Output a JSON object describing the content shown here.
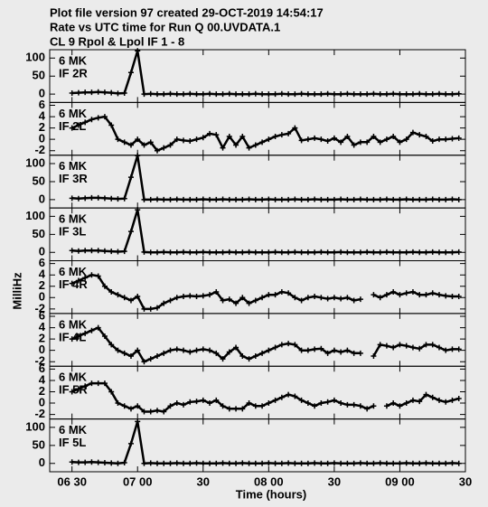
{
  "title_lines": [
    "Plot file version 97  created 29-OCT-2019 14:54:17",
    "Rate vs UTC time for Run Q 00.UVDATA.1",
    "CL 9  Rpol & Lpol  IF 1 - 8"
  ],
  "ylabel": "MilliHz",
  "time_axis": {
    "label": "Time (hours)",
    "xlim": [
      6.33,
      9.5
    ],
    "xticks": [
      {
        "value": 6.5,
        "label": "06 30"
      },
      {
        "value": 7,
        "label": "07 00"
      },
      {
        "value": 7.5,
        "label": "30"
      },
      {
        "value": 8,
        "label": "08 00"
      },
      {
        "value": 8.5,
        "label": "30"
      },
      {
        "value": 9,
        "label": "09 00"
      },
      {
        "value": 9.5,
        "label": "30"
      }
    ]
  },
  "chart_data": [
    {
      "type": "scatter",
      "source": "6 MK",
      "label": "IF 2R",
      "color": "#000000",
      "ylim": [
        -23,
        123
      ],
      "yticks": [
        0,
        50,
        100
      ],
      "x": [
        6.5,
        6.55,
        6.6,
        6.65,
        6.7,
        6.75,
        6.8,
        6.85,
        6.9,
        6.95,
        7,
        7.05,
        7.1,
        7.15,
        7.2,
        7.25,
        7.3,
        7.35,
        7.4,
        7.45,
        7.5,
        7.55,
        7.6,
        7.65,
        7.7,
        7.75,
        7.8,
        7.85,
        7.9,
        7.95,
        8,
        8.05,
        8.1,
        8.15,
        8.2,
        8.25,
        8.3,
        8.35,
        8.4,
        8.45,
        8.5,
        8.55,
        8.6,
        8.65,
        8.7,
        8.75,
        8.8,
        8.85,
        8.9,
        8.95,
        9,
        9.05,
        9.1,
        9.15,
        9.2,
        9.25,
        9.3,
        9.35,
        9.4,
        9.45
      ],
      "values": [
        3,
        4,
        5,
        5,
        6,
        5,
        4,
        2,
        3,
        60,
        120,
        0,
        1,
        0,
        0,
        1,
        0,
        0,
        1,
        0,
        0,
        1,
        0,
        0,
        1,
        0,
        0,
        0,
        1,
        0,
        0,
        0,
        1,
        0,
        0,
        1,
        0,
        0,
        0,
        1,
        0,
        0,
        1,
        0,
        0,
        0,
        1,
        0,
        0,
        1,
        0,
        0,
        0,
        1,
        0,
        0,
        1,
        0,
        0,
        1
      ]
    },
    {
      "type": "scatter",
      "source": "6 MK",
      "label": "IF 2L",
      "color": "#000000",
      "ylim": [
        -2.8,
        6.5
      ],
      "yticks": [
        -2,
        0,
        2,
        4,
        6
      ],
      "x": [
        6.5,
        6.55,
        6.6,
        6.65,
        6.7,
        6.75,
        6.8,
        6.85,
        6.9,
        6.95,
        7,
        7.05,
        7.1,
        7.15,
        7.2,
        7.25,
        7.3,
        7.35,
        7.4,
        7.45,
        7.5,
        7.55,
        7.6,
        7.65,
        7.7,
        7.75,
        7.8,
        7.85,
        7.9,
        7.95,
        8,
        8.05,
        8.1,
        8.15,
        8.2,
        8.25,
        8.3,
        8.35,
        8.4,
        8.45,
        8.5,
        8.55,
        8.6,
        8.65,
        8.7,
        8.75,
        8.8,
        8.85,
        8.9,
        8.95,
        9,
        9.05,
        9.1,
        9.15,
        9.2,
        9.25,
        9.3,
        9.35,
        9.4,
        9.45
      ],
      "values": [
        2,
        2.5,
        3,
        3.5,
        3.8,
        4,
        2.5,
        0,
        -0.5,
        -1,
        0,
        -1,
        -0.5,
        -2,
        -1.5,
        -1,
        0,
        -0.2,
        -0.3,
        0,
        0.3,
        1,
        0.8,
        -1.5,
        0.5,
        -1,
        0.5,
        -1.5,
        -1,
        -0.5,
        0,
        0.5,
        0.8,
        1,
        2,
        -0.2,
        0,
        0.2,
        0,
        -0.3,
        0.2,
        -0.5,
        0.5,
        -1,
        -0.5,
        -0.5,
        0.5,
        -0.5,
        0,
        0.5,
        -0.5,
        0,
        1.2,
        0.8,
        0.5,
        -0.3,
        0,
        0,
        0.1,
        0.2
      ]
    },
    {
      "type": "scatter",
      "source": "6 MK",
      "label": "IF 3R",
      "color": "#000000",
      "ylim": [
        -23,
        123
      ],
      "yticks": [
        0,
        50,
        100
      ],
      "x": [
        6.5,
        6.55,
        6.6,
        6.65,
        6.7,
        6.75,
        6.8,
        6.85,
        6.9,
        6.95,
        7,
        7.05,
        7.1,
        7.15,
        7.2,
        7.25,
        7.3,
        7.35,
        7.4,
        7.45,
        7.5,
        7.55,
        7.6,
        7.65,
        7.7,
        7.75,
        7.8,
        7.85,
        7.9,
        7.95,
        8,
        8.05,
        8.1,
        8.15,
        8.2,
        8.25,
        8.3,
        8.35,
        8.4,
        8.45,
        8.5,
        8.55,
        8.6,
        8.65,
        8.7,
        8.75,
        8.8,
        8.85,
        8.9,
        8.95,
        9,
        9.05,
        9.1,
        9.15,
        9.2,
        9.25,
        9.3,
        9.35,
        9.4,
        9.45
      ],
      "values": [
        4,
        3,
        4,
        5,
        5,
        4,
        3,
        2,
        3,
        62,
        122,
        0,
        0,
        1,
        0,
        0,
        1,
        0,
        0,
        0,
        1,
        0,
        0,
        1,
        0,
        0,
        0,
        1,
        0,
        0,
        1,
        0,
        0,
        0,
        1,
        0,
        0,
        1,
        0,
        0,
        0,
        1,
        0,
        0,
        1,
        0,
        0,
        0,
        1,
        0,
        0,
        1,
        0,
        0,
        0,
        1,
        0,
        0,
        1,
        0
      ]
    },
    {
      "type": "scatter",
      "source": "6 MK",
      "label": "IF 3L",
      "color": "#000000",
      "ylim": [
        -23,
        123
      ],
      "yticks": [
        0,
        50,
        100
      ],
      "x": [
        6.5,
        6.55,
        6.6,
        6.65,
        6.7,
        6.75,
        6.8,
        6.85,
        6.9,
        6.95,
        7,
        7.05,
        7.1,
        7.15,
        7.2,
        7.25,
        7.3,
        7.35,
        7.4,
        7.45,
        7.5,
        7.55,
        7.6,
        7.65,
        7.7,
        7.75,
        7.8,
        7.85,
        7.9,
        7.95,
        8,
        8.05,
        8.1,
        8.15,
        8.2,
        8.25,
        8.3,
        8.35,
        8.4,
        8.45,
        8.5,
        8.55,
        8.6,
        8.65,
        8.7,
        8.75,
        8.8,
        8.85,
        8.9,
        8.95,
        9,
        9.05,
        9.1,
        9.15,
        9.2,
        9.25,
        9.3,
        9.35,
        9.4,
        9.45
      ],
      "values": [
        5,
        4,
        5,
        5,
        5,
        4,
        3,
        2,
        3,
        58,
        118,
        1,
        0,
        0,
        1,
        0,
        0,
        1,
        0,
        0,
        1,
        0,
        0,
        0,
        1,
        0,
        0,
        1,
        0,
        0,
        0,
        1,
        0,
        0,
        1,
        0,
        0,
        0,
        1,
        0,
        0,
        1,
        0,
        0,
        0,
        1,
        0,
        0,
        1,
        0,
        0,
        0,
        1,
        0,
        0,
        1,
        0,
        0,
        0,
        1
      ]
    },
    {
      "type": "scatter",
      "source": "6 MK",
      "label": "IF 4R",
      "color": "#000000",
      "ylim": [
        -2.8,
        6.5
      ],
      "yticks": [
        -2,
        0,
        2,
        4,
        6
      ],
      "x": [
        6.5,
        6.55,
        6.6,
        6.65,
        6.7,
        6.75,
        6.8,
        6.85,
        6.9,
        6.95,
        7,
        7.05,
        7.1,
        7.15,
        7.2,
        7.25,
        7.3,
        7.35,
        7.4,
        7.45,
        7.5,
        7.55,
        7.6,
        7.65,
        7.7,
        7.75,
        7.8,
        7.85,
        7.9,
        7.95,
        8,
        8.05,
        8.1,
        8.15,
        8.2,
        8.25,
        8.3,
        8.35,
        8.4,
        8.45,
        8.5,
        8.55,
        8.6,
        8.65,
        8.7,
        8.75,
        8.8,
        8.85,
        8.9,
        8.95,
        9,
        9.05,
        9.1,
        9.15,
        9.2,
        9.25,
        9.3,
        9.35,
        9.4,
        9.45
      ],
      "values": [
        2.5,
        3,
        3.5,
        4,
        3.8,
        2,
        1,
        0.5,
        0,
        -0.5,
        0.2,
        -2,
        -2,
        -1.8,
        -1,
        -0.5,
        0,
        0.2,
        0.3,
        0.2,
        0.3,
        0.5,
        1,
        -0.5,
        -0.3,
        -1,
        0,
        -1,
        -0.5,
        0,
        0.5,
        0.5,
        1,
        0.8,
        0,
        -0.5,
        0,
        0.2,
        0,
        -0.2,
        0,
        -0.2,
        0,
        -0.5,
        -0.3,
        null,
        0.5,
        0,
        0.5,
        1,
        0.5,
        0.8,
        1,
        0.5,
        0.5,
        0.8,
        0.5,
        0.3,
        0.2,
        0.2
      ]
    },
    {
      "type": "scatter",
      "source": "6 MK",
      "label": "IF 4L",
      "color": "#000000",
      "ylim": [
        -2.8,
        6.5
      ],
      "yticks": [
        -2,
        0,
        2,
        4,
        6
      ],
      "x": [
        6.5,
        6.55,
        6.6,
        6.65,
        6.7,
        6.75,
        6.8,
        6.85,
        6.9,
        6.95,
        7,
        7.05,
        7.1,
        7.15,
        7.2,
        7.25,
        7.3,
        7.35,
        7.4,
        7.45,
        7.5,
        7.55,
        7.6,
        7.65,
        7.7,
        7.75,
        7.8,
        7.85,
        7.9,
        7.95,
        8,
        8.05,
        8.1,
        8.15,
        8.2,
        8.25,
        8.3,
        8.35,
        8.4,
        8.45,
        8.5,
        8.55,
        8.6,
        8.65,
        8.7,
        8.75,
        8.8,
        8.85,
        8.9,
        8.95,
        9,
        9.05,
        9.1,
        9.15,
        9.2,
        9.25,
        9.3,
        9.35,
        9.4,
        9.45
      ],
      "values": [
        2,
        2.5,
        3,
        3.5,
        4,
        2.5,
        1,
        0,
        -0.5,
        -1,
        0,
        -2,
        -1.5,
        -1,
        -0.5,
        0,
        0.2,
        0,
        -0.3,
        0,
        0.2,
        0,
        -0.5,
        -1.5,
        -0.3,
        0.5,
        -1,
        -1.5,
        -1,
        -0.5,
        0,
        0.5,
        1,
        1.2,
        1,
        0,
        0,
        0.2,
        0.3,
        -0.5,
        0,
        -0.3,
        0,
        -0.5,
        -0.5,
        null,
        -1,
        1,
        0.8,
        0.5,
        1,
        0.8,
        0.5,
        0.3,
        1,
        1,
        0.5,
        0,
        0.2,
        0.2
      ]
    },
    {
      "type": "scatter",
      "source": "6 MK",
      "label": "IF 5R",
      "color": "#000000",
      "ylim": [
        -2.8,
        6.5
      ],
      "yticks": [
        -2,
        0,
        2,
        4,
        6
      ],
      "x": [
        6.5,
        6.55,
        6.6,
        6.65,
        6.7,
        6.75,
        6.8,
        6.85,
        6.9,
        6.95,
        7,
        7.05,
        7.1,
        7.15,
        7.2,
        7.25,
        7.3,
        7.35,
        7.4,
        7.45,
        7.5,
        7.55,
        7.6,
        7.65,
        7.7,
        7.75,
        7.8,
        7.85,
        7.9,
        7.95,
        8,
        8.05,
        8.1,
        8.15,
        8.2,
        8.25,
        8.3,
        8.35,
        8.4,
        8.45,
        8.5,
        8.55,
        8.6,
        8.65,
        8.7,
        8.75,
        8.8,
        8.85,
        8.9,
        8.95,
        9,
        9.05,
        9.1,
        9.15,
        9.2,
        9.25,
        9.3,
        9.35,
        9.4,
        9.45
      ],
      "values": [
        2,
        2.5,
        3,
        3.5,
        3.5,
        3.5,
        2,
        0,
        -0.5,
        -1,
        -0.5,
        -1.5,
        -1.5,
        -1.3,
        -1.5,
        -0.5,
        0,
        -0.3,
        0.2,
        0.3,
        0.5,
        0,
        0.5,
        -0.5,
        -1,
        -1,
        -1,
        0,
        -0.5,
        -0.5,
        0,
        0.5,
        1,
        1.5,
        1.2,
        0.5,
        0,
        -0.5,
        0,
        0.2,
        0.5,
        0,
        -0.3,
        -0.3,
        -0.5,
        -1,
        -0.5,
        null,
        -0.5,
        0,
        -0.5,
        0,
        0.5,
        0.3,
        1.5,
        1,
        0.5,
        0.2,
        0.5,
        0.8
      ]
    },
    {
      "type": "scatter",
      "source": "6 MK",
      "label": "IF 5L",
      "color": "#000000",
      "ylim": [
        -23,
        123
      ],
      "yticks": [
        0,
        50,
        100
      ],
      "x": [
        6.5,
        6.55,
        6.6,
        6.65,
        6.7,
        6.75,
        6.8,
        6.85,
        6.9,
        6.95,
        7,
        7.05,
        7.1,
        7.15,
        7.2,
        7.25,
        7.3,
        7.35,
        7.4,
        7.45,
        7.5,
        7.55,
        7.6,
        7.65,
        7.7,
        7.75,
        7.8,
        7.85,
        7.9,
        7.95,
        8,
        8.05,
        8.1,
        8.15,
        8.2,
        8.25,
        8.3,
        8.35,
        8.4,
        8.45,
        8.5,
        8.55,
        8.6,
        8.65,
        8.7,
        8.75,
        8.8,
        8.85,
        8.9,
        8.95,
        9,
        9.05,
        9.1,
        9.15,
        9.2,
        9.25,
        9.3,
        9.35,
        9.4,
        9.45
      ],
      "values": [
        4,
        3,
        3,
        4,
        3,
        2,
        1,
        0,
        2,
        55,
        116,
        0,
        1,
        0,
        0,
        0,
        1,
        0,
        0,
        1,
        0,
        0,
        0,
        1,
        0,
        0,
        1,
        0,
        0,
        0,
        1,
        0,
        0,
        1,
        0,
        0,
        0,
        1,
        0,
        0,
        1,
        0,
        0,
        0,
        1,
        0,
        0,
        1,
        0,
        0,
        0,
        1,
        0,
        0,
        1,
        0,
        0,
        0,
        1,
        0
      ]
    }
  ]
}
